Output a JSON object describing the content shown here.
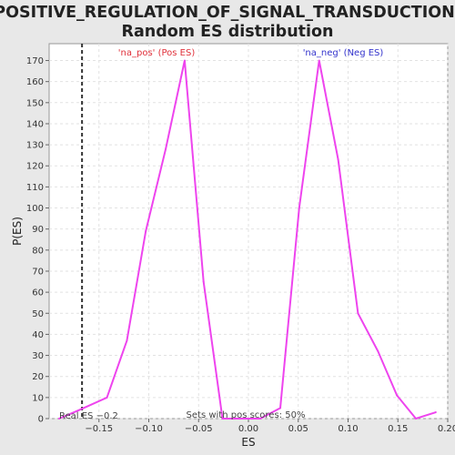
{
  "chart_data": {
    "type": "line",
    "title_line1": "POSITIVE_REGULATION_OF_SIGNAL_TRANSDUCTION:",
    "title_line2": "Random ES distribution",
    "xlabel": "ES",
    "ylabel": "P(ES)",
    "xlim": [
      -0.2,
      0.2
    ],
    "ylim": [
      0,
      178
    ],
    "x_ticks": [
      -0.15,
      -0.1,
      -0.05,
      0.0,
      0.05,
      0.1,
      0.15,
      0.2
    ],
    "x_tick_labels": [
      "−0.15",
      "−0.10",
      "−0.05",
      "0.00",
      "0.05",
      "0.10",
      "0.15",
      "0.20"
    ],
    "y_ticks": [
      0,
      10,
      20,
      30,
      40,
      50,
      60,
      70,
      80,
      90,
      100,
      110,
      120,
      130,
      140,
      150,
      160,
      170
    ],
    "grid": true,
    "line_color": "#ee44ee",
    "series": [
      {
        "x": [
          -0.19,
          -0.17,
          -0.142,
          -0.122,
          -0.103,
          -0.083,
          -0.064,
          -0.045,
          -0.026,
          -0.007,
          0.012,
          0.032,
          0.051,
          0.071,
          0.09,
          0.11,
          0.13,
          0.149,
          0.168,
          0.188
        ],
        "values": [
          0,
          4,
          10,
          37,
          89,
          128,
          170,
          65,
          0,
          0,
          0,
          5,
          100,
          170,
          123,
          50,
          32,
          11,
          0,
          3
        ]
      }
    ],
    "legend_pos": "'na_pos' (Pos ES)",
    "legend_neg": "'na_neg' (Neg ES)",
    "legend_pos_color": "#e0303a",
    "legend_neg_color": "#3333cc",
    "real_es_value": -0.167,
    "real_es_label": "Real ES −0.2",
    "pos_scores_note": "Sets with pos scores: 50%"
  }
}
